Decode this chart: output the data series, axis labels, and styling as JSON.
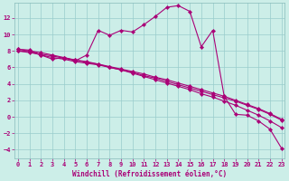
{
  "xlabel": "Windchill (Refroidissement éolien,°C)",
  "background_color": "#cceee8",
  "line_color": "#aa0077",
  "grid_color": "#99cccc",
  "x_ticks": [
    0,
    1,
    2,
    3,
    4,
    5,
    6,
    7,
    8,
    9,
    10,
    11,
    12,
    13,
    14,
    15,
    16,
    17,
    18,
    19,
    20,
    21,
    22,
    23
  ],
  "y_ticks": [
    -4,
    -2,
    0,
    2,
    4,
    6,
    8,
    10,
    12
  ],
  "ylim": [
    -5.0,
    13.8
  ],
  "xlim": [
    -0.3,
    23.3
  ],
  "series": [
    {
      "x": [
        0,
        1,
        2,
        3,
        4,
        5,
        6,
        7,
        8,
        9,
        10,
        11,
        12,
        13,
        14,
        15,
        16,
        17,
        18,
        19,
        20,
        21,
        22,
        23
      ],
      "y": [
        8.2,
        8.1,
        7.5,
        7.0,
        7.2,
        6.8,
        7.5,
        10.5,
        9.9,
        10.5,
        10.3,
        11.2,
        12.2,
        13.3,
        13.5,
        12.8,
        8.5,
        10.5,
        2.5,
        0.3,
        0.2,
        -0.5,
        -1.5,
        -3.8
      ]
    },
    {
      "x": [
        0,
        1,
        2,
        3,
        4,
        5,
        6,
        7,
        8,
        9,
        10,
        11,
        12,
        13,
        14,
        15,
        16,
        17,
        18,
        19,
        20,
        21,
        22,
        23
      ],
      "y": [
        8.0,
        7.9,
        7.5,
        7.2,
        7.0,
        6.7,
        6.5,
        6.3,
        6.0,
        5.7,
        5.4,
        5.0,
        4.7,
        4.3,
        3.9,
        3.5,
        3.1,
        2.7,
        2.3,
        1.9,
        1.4,
        0.9,
        0.3,
        -0.4
      ]
    },
    {
      "x": [
        0,
        1,
        2,
        3,
        4,
        5,
        6,
        7,
        8,
        9,
        10,
        11,
        12,
        13,
        14,
        15,
        16,
        17,
        18,
        19,
        20,
        21,
        22,
        23
      ],
      "y": [
        8.0,
        7.8,
        7.6,
        7.4,
        7.1,
        6.9,
        6.6,
        6.4,
        6.1,
        5.8,
        5.5,
        5.2,
        4.8,
        4.5,
        4.1,
        3.7,
        3.3,
        2.9,
        2.5,
        2.0,
        1.5,
        1.0,
        0.4,
        -0.3
      ]
    },
    {
      "x": [
        0,
        1,
        2,
        3,
        4,
        5,
        6,
        7,
        8,
        9,
        10,
        11,
        12,
        13,
        14,
        15,
        16,
        17,
        18,
        19,
        20,
        21,
        22,
        23
      ],
      "y": [
        8.2,
        8.0,
        7.8,
        7.5,
        7.2,
        6.9,
        6.7,
        6.4,
        6.0,
        5.7,
        5.3,
        4.9,
        4.5,
        4.1,
        3.7,
        3.3,
        2.8,
        2.4,
        1.9,
        1.4,
        0.8,
        0.2,
        -0.5,
        -1.3
      ]
    }
  ],
  "marker": "D",
  "marker_size": 2.2,
  "line_width": 0.8,
  "tick_fontsize": 5.0,
  "label_fontsize": 5.5
}
